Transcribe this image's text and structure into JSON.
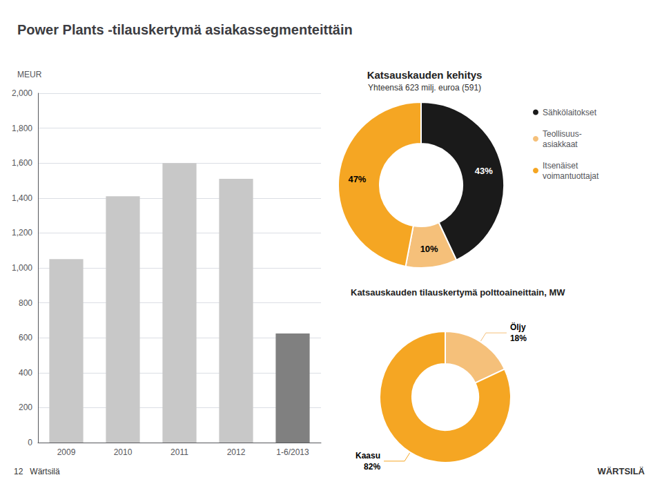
{
  "chart_data": [
    {
      "type": "bar",
      "title": "Power Plants -tilauskertymä asiakassegmenteittäin",
      "categories": [
        "2009",
        "2010",
        "2011",
        "2012",
        "1-6/2013"
      ],
      "values": [
        1050,
        1410,
        1600,
        1510,
        625
      ],
      "colors": [
        "#C8C8C8",
        "#C8C8C8",
        "#C8C8C8",
        "#C8C8C8",
        "#808080"
      ],
      "ylabel": "MEUR",
      "ylim": [
        0,
        2000
      ],
      "yticks": [
        0,
        200,
        400,
        600,
        800,
        1000,
        1200,
        1400,
        1600,
        1800,
        2000
      ],
      "grid": true,
      "annotations": [
        "12   Wärtsilä",
        "WÄRTSILÄ"
      ]
    },
    {
      "type": "pie",
      "title": "Katsauskauden kehitys",
      "subtitle": "Yhteensä 623 milj. euroa (591)",
      "categories": [
        "Sähkölaitokset",
        "Teollisuus-\nasiakkaat",
        "Itsenäiset\nvoimantuottajat"
      ],
      "values": [
        43,
        10,
        47
      ],
      "value_labels": [
        "43%",
        "10%",
        "47%"
      ],
      "colors": [
        "#1A1A1A",
        "#F5C07A",
        "#F5A623"
      ],
      "data_labels": true,
      "legend": "right"
    },
    {
      "type": "pie",
      "title": "Katsauskauden tilauskertymä polttoaineittain, MW",
      "categories": [
        "Öljy",
        "Kaasu"
      ],
      "values": [
        18,
        82
      ],
      "value_labels": [
        "18%",
        "82%"
      ],
      "colors": [
        "#F5C07A",
        "#F5A623"
      ],
      "data_labels": true
    }
  ]
}
